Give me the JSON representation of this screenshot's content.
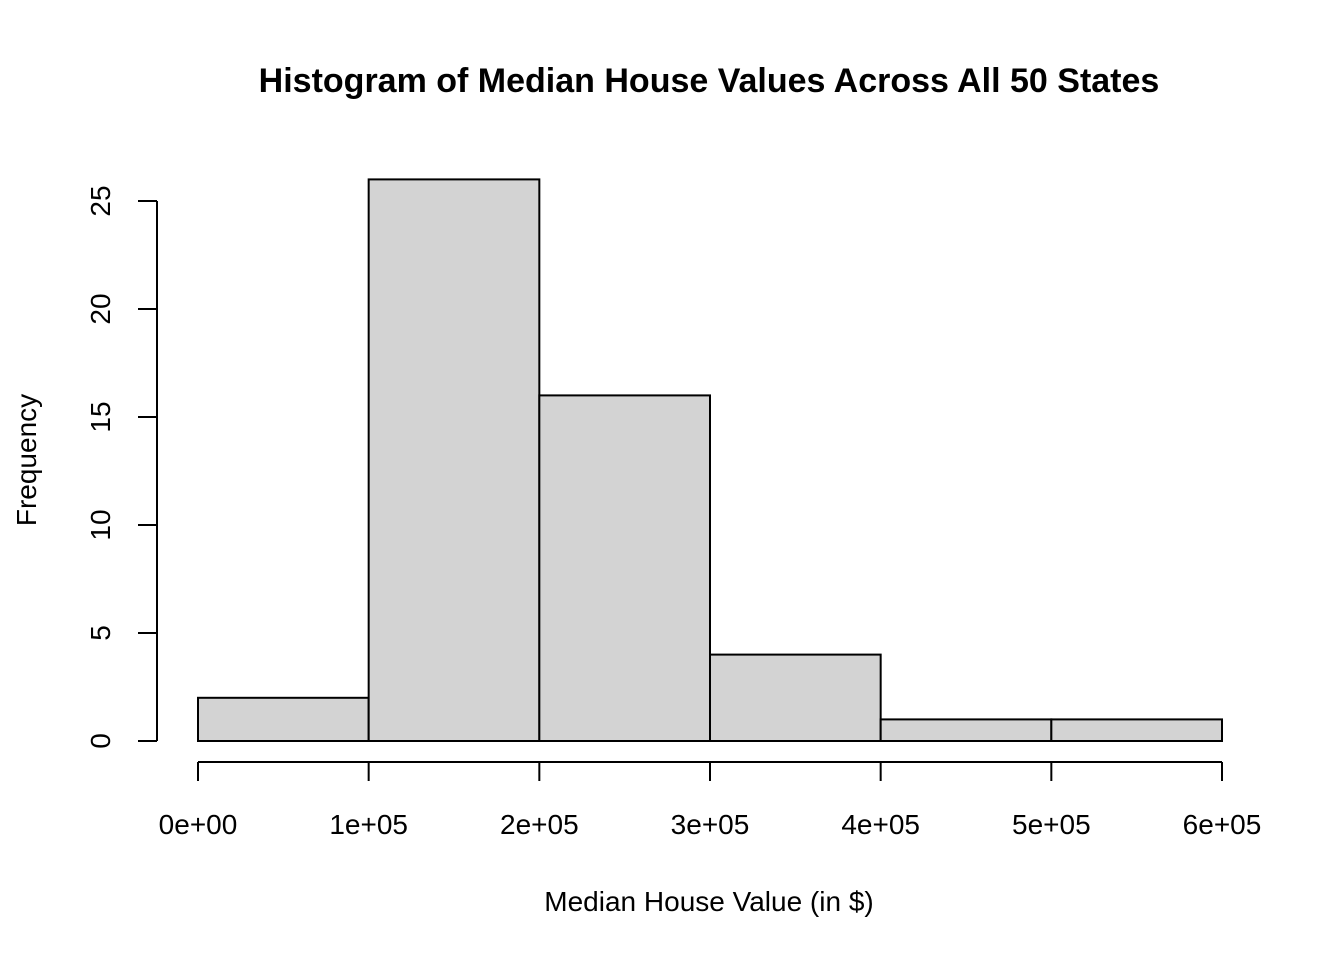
{
  "chart_data": {
    "type": "bar",
    "title": "Histogram of Median House Values Across All 50 States",
    "xlabel": "Median House Value (in $)",
    "ylabel": "Frequency",
    "bins": [
      {
        "start": 0,
        "end": 100000,
        "count": 2
      },
      {
        "start": 100000,
        "end": 200000,
        "count": 26
      },
      {
        "start": 200000,
        "end": 300000,
        "count": 16
      },
      {
        "start": 300000,
        "end": 400000,
        "count": 4
      },
      {
        "start": 400000,
        "end": 500000,
        "count": 1
      },
      {
        "start": 500000,
        "end": 600000,
        "count": 1
      }
    ],
    "xlim": [
      0,
      600000
    ],
    "ylim": [
      0,
      26
    ],
    "x_ticks": [
      {
        "value": 0,
        "label": "0e+00"
      },
      {
        "value": 100000,
        "label": "1e+05"
      },
      {
        "value": 200000,
        "label": "2e+05"
      },
      {
        "value": 300000,
        "label": "3e+05"
      },
      {
        "value": 400000,
        "label": "4e+05"
      },
      {
        "value": 500000,
        "label": "5e+05"
      },
      {
        "value": 600000,
        "label": "6e+05"
      }
    ],
    "y_ticks": [
      {
        "value": 0,
        "label": "0"
      },
      {
        "value": 5,
        "label": "5"
      },
      {
        "value": 10,
        "label": "10"
      },
      {
        "value": 15,
        "label": "15"
      },
      {
        "value": 20,
        "label": "20"
      },
      {
        "value": 25,
        "label": "25"
      }
    ],
    "bar_color": "#d3d3d3",
    "grid": false,
    "legend": "none"
  }
}
